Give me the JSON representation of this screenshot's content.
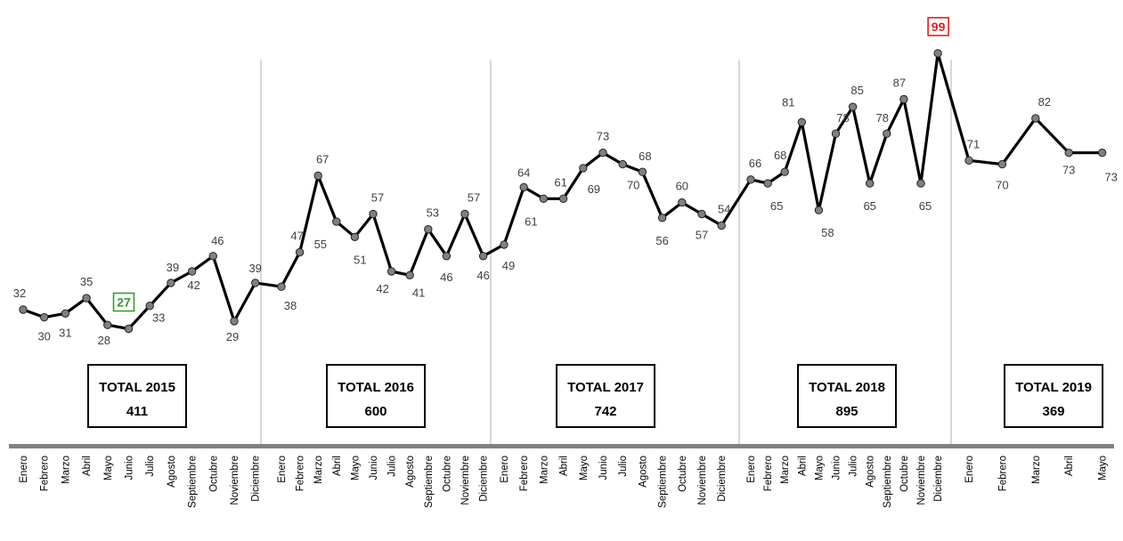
{
  "chart_data": {
    "type": "line",
    "title": "",
    "xlabel": "",
    "ylabel": "",
    "ylim": [
      20,
      100
    ],
    "grid": false,
    "legend": "none",
    "line_color": "#000000",
    "marker_color": "#808080",
    "separator_color": "#bfbfbf",
    "axis_color": "#808080",
    "years": [
      {
        "year": "2015",
        "total_label": "TOTAL 2015",
        "total": "411",
        "months": [
          "Enero",
          "Febrero",
          "Marzo",
          "Abril",
          "Mayo",
          "Junio",
          "Julio",
          "Agosto",
          "Septiembre",
          "Octubre",
          "Noviembre",
          "Diciembre"
        ],
        "values": [
          32,
          30,
          31,
          35,
          28,
          27,
          33,
          39,
          42,
          46,
          29,
          39
        ]
      },
      {
        "year": "2016",
        "total_label": "TOTAL 2016",
        "total": "600",
        "months": [
          "Enero",
          "Febrero",
          "Marzo",
          "Abril",
          "Mayo",
          "Junio",
          "Julio",
          "Agosto",
          "Septiembre",
          "Octubre",
          "Noviembre",
          "Diciembre"
        ],
        "values": [
          38,
          47,
          67,
          55,
          51,
          57,
          42,
          41,
          53,
          46,
          57,
          46
        ]
      },
      {
        "year": "2017",
        "total_label": "TOTAL 2017",
        "total": "742",
        "months": [
          "Enero",
          "Febrero",
          "Marzo",
          "Abril",
          "Mayo",
          "Junio",
          "Julio",
          "Agosto",
          "Septiembre",
          "Octubre",
          "Noviembre",
          "Diciembre"
        ],
        "values": [
          49,
          64,
          61,
          61,
          69,
          73,
          70,
          68,
          56,
          60,
          57,
          54
        ]
      },
      {
        "year": "2018",
        "total_label": "TOTAL 2018",
        "total": "895",
        "months": [
          "Enero",
          "Febrero",
          "Marzo",
          "Abril",
          "Mayo",
          "Junio",
          "Julio",
          "Agosto",
          "Septiembre",
          "Octubre",
          "Noviembre",
          "Diciembre"
        ],
        "values": [
          66,
          65,
          68,
          81,
          58,
          78,
          85,
          65,
          78,
          87,
          65,
          99
        ]
      },
      {
        "year": "2019",
        "total_label": "TOTAL 2019",
        "total": "369",
        "months": [
          "Enero",
          "Febrero",
          "Marzo",
          "Abril",
          "Mayo"
        ],
        "values": [
          71,
          70,
          82,
          73,
          73
        ]
      }
    ],
    "highlights": [
      {
        "value": 27,
        "role": "min",
        "color": "#2e9e2e"
      },
      {
        "value": 99,
        "role": "max",
        "color": "#e02020"
      }
    ]
  }
}
